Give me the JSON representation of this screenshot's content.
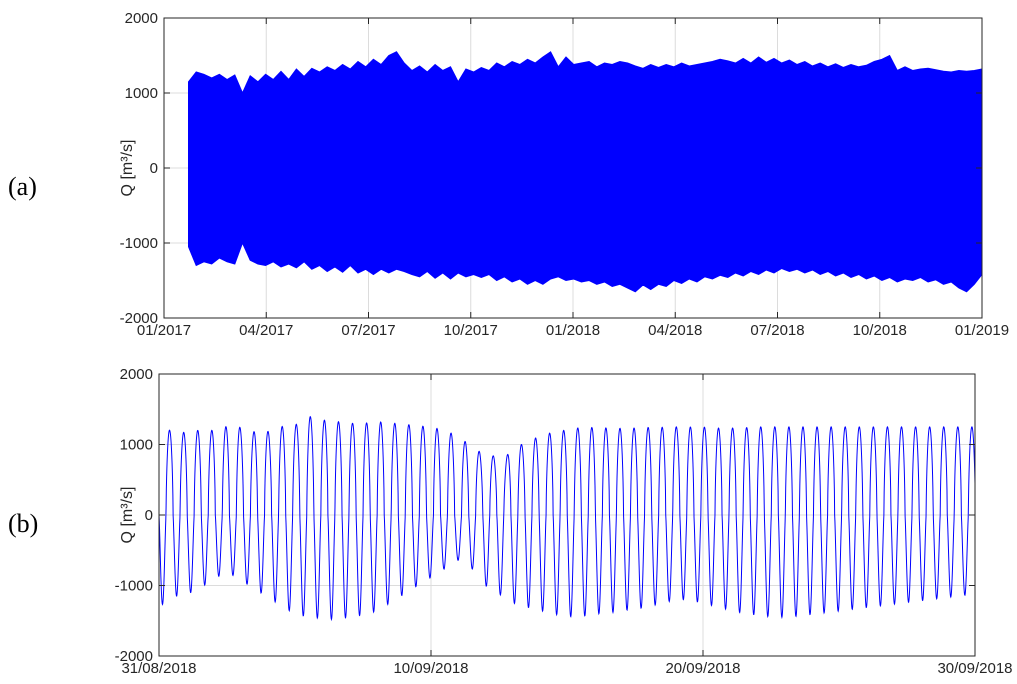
{
  "chart_data": [
    {
      "type": "line",
      "panel_label": "(a)",
      "ylabel": "Q [m³/s]",
      "xlabel": "",
      "ylim": [
        -2000,
        2000
      ],
      "y_ticks": [
        "-2000",
        "-1000",
        "0",
        "1000",
        "2000"
      ],
      "x_ticks": [
        "01/2017",
        "04/2017",
        "07/2017",
        "10/2017",
        "01/2018",
        "04/2018",
        "07/2018",
        "10/2018",
        "01/2019"
      ],
      "xlim": [
        "2017-01-01",
        "2019-01-01"
      ],
      "grid": true,
      "color": "#0000ff",
      "series": [
        {
          "x_date_weekly": "2017-01-15 to 2018-12-31",
          "upper_envelope": [
            1150,
            1280,
            1250,
            1200,
            1250,
            1180,
            1240,
            1000,
            1230,
            1150,
            1250,
            1180,
            1290,
            1180,
            1320,
            1220,
            1330,
            1280,
            1350,
            1300,
            1380,
            1320,
            1420,
            1350,
            1450,
            1380,
            1500,
            1550,
            1400,
            1300,
            1360,
            1280,
            1380,
            1300,
            1350,
            1150,
            1320,
            1280,
            1340,
            1300,
            1400,
            1350,
            1420,
            1380,
            1450,
            1400,
            1480,
            1550,
            1350,
            1480,
            1380,
            1400,
            1420,
            1350,
            1400,
            1380,
            1420,
            1400,
            1360,
            1330,
            1380,
            1340,
            1380,
            1350,
            1400,
            1360,
            1380,
            1400,
            1420,
            1450,
            1430,
            1400,
            1460,
            1400,
            1480,
            1410,
            1460,
            1400,
            1440,
            1380,
            1420,
            1360,
            1400,
            1350,
            1390,
            1340,
            1380,
            1350,
            1370,
            1420,
            1450,
            1500,
            1300,
            1350,
            1300,
            1320,
            1330,
            1310,
            1290,
            1280,
            1300,
            1290,
            1300,
            1320
          ],
          "lower_envelope": [
            -1050,
            -1300,
            -1250,
            -1280,
            -1200,
            -1250,
            -1280,
            -1000,
            -1230,
            -1280,
            -1300,
            -1250,
            -1320,
            -1280,
            -1330,
            -1250,
            -1350,
            -1300,
            -1380,
            -1320,
            -1390,
            -1300,
            -1400,
            -1350,
            -1420,
            -1350,
            -1400,
            -1350,
            -1380,
            -1420,
            -1450,
            -1380,
            -1470,
            -1400,
            -1480,
            -1400,
            -1450,
            -1420,
            -1460,
            -1420,
            -1500,
            -1450,
            -1520,
            -1480,
            -1550,
            -1500,
            -1550,
            -1480,
            -1450,
            -1500,
            -1480,
            -1520,
            -1500,
            -1550,
            -1520,
            -1580,
            -1550,
            -1600,
            -1650,
            -1560,
            -1620,
            -1550,
            -1580,
            -1500,
            -1540,
            -1480,
            -1520,
            -1450,
            -1480,
            -1430,
            -1460,
            -1400,
            -1440,
            -1380,
            -1420,
            -1360,
            -1400,
            -1340,
            -1380,
            -1350,
            -1400,
            -1360,
            -1420,
            -1380,
            -1440,
            -1400,
            -1460,
            -1420,
            -1480,
            -1440,
            -1500,
            -1460,
            -1520,
            -1480,
            -1500,
            -1460,
            -1520,
            -1490,
            -1550,
            -1520,
            -1600,
            -1650,
            -1550,
            -1420
          ]
        }
      ]
    },
    {
      "type": "line",
      "panel_label": "(b)",
      "ylabel": "Q [m³/s]",
      "xlabel": "",
      "ylim": [
        -2000,
        2000
      ],
      "y_ticks": [
        "-2000",
        "-1000",
        "0",
        "1000",
        "2000"
      ],
      "x_ticks": [
        "31/08/2018",
        "10/09/2018",
        "20/09/2018",
        "30/09/2018"
      ],
      "xlim": [
        "2018-08-31",
        "2018-09-30"
      ],
      "grid": true,
      "color": "#0000ff",
      "series": [
        {
          "x_date": "2018-08-31 to 2018-09-30",
          "period_hours": 12.42,
          "cycle_peaks": [
            1240,
            1230,
            1200,
            1230,
            1150,
            1200,
            1180,
            1200,
            1220,
            1180,
            1220,
            1200,
            1250,
            1290,
            1300,
            1200,
            1150,
            1180,
            1200,
            1250,
            1150,
            1220,
            1250,
            1280,
            1250,
            1300,
            1320,
            1400,
            1380,
            1320,
            1350,
            1350,
            1320,
            1330,
            1310,
            1300,
            1290,
            1310,
            1300,
            1300,
            1320,
            1300,
            1300,
            1300,
            1300,
            1280,
            1290,
            1270,
            1250,
            1240,
            1230,
            1200,
            1180,
            1150,
            1100,
            1050,
            1000,
            950,
            880,
            850,
            850,
            800,
            700,
            900,
            950,
            1000,
            1000,
            1050,
            1100,
            1100,
            1150,
            1180,
            1200,
            1200,
            1220,
            1230,
            1240,
            1250,
            1240,
            1250,
            1240,
            1230,
            1240,
            1230,
            1220,
            1240,
            1230,
            1250,
            1240,
            1250,
            1250,
            1240,
            1250,
            1250,
            1250,
            1240,
            1250,
            1240,
            1250,
            1230,
            1240,
            1230,
            1240,
            1230,
            1240,
            1240,
            1240,
            1230,
            1250,
            1250,
            1250,
            1250,
            1250,
            1250,
            1250,
            1250,
            1250,
            1250,
            1250,
            1250,
            1250,
            1250,
            1250,
            1250,
            1250,
            1250,
            1250,
            1250,
            1250,
            1250,
            1250,
            1250,
            1250,
            1250,
            1250,
            1250,
            1250,
            1250,
            1250,
            1250,
            1250,
            1250,
            1250,
            1250,
            1250,
            1250,
            1250,
            1250
          ],
          "cycle_troughs": [
            -1300,
            -1250,
            -1200,
            -1150,
            -1150,
            -1100,
            -1100,
            -1050,
            -1000,
            -950,
            -900,
            -850,
            -800,
            -850,
            -900,
            -950,
            -1000,
            -1050,
            -1100,
            -1150,
            -1200,
            -1250,
            -1300,
            -1350,
            -1400,
            -1420,
            -1440,
            -1450,
            -1460,
            -1470,
            -1480,
            -1480,
            -1470,
            -1460,
            -1450,
            -1440,
            -1420,
            -1400,
            -1380,
            -1350,
            -1300,
            -1250,
            -1200,
            -1150,
            -1100,
            -1050,
            -1000,
            -950,
            -900,
            -850,
            -800,
            -750,
            -700,
            -650,
            -600,
            -700,
            -800,
            -900,
            -1000,
            -1050,
            -1100,
            -1150,
            -1200,
            -1250,
            -1280,
            -1300,
            -1320,
            -1340,
            -1360,
            -1380,
            -1400,
            -1420,
            -1430,
            -1440,
            -1450,
            -1440,
            -1430,
            -1420,
            -1400,
            -1400,
            -1380,
            -1380,
            -1360,
            -1350,
            -1340,
            -1330,
            -1320,
            -1300,
            -1280,
            -1260,
            -1240,
            -1220,
            -1200,
            -1200,
            -1200,
            -1220,
            -1240,
            -1260,
            -1280,
            -1300,
            -1320,
            -1340,
            -1360,
            -1380,
            -1400,
            -1400,
            -1420,
            -1420,
            -1440,
            -1440,
            -1450,
            -1450,
            -1440,
            -1440,
            -1430,
            -1420,
            -1410,
            -1400,
            -1390,
            -1380,
            -1370,
            -1360,
            -1350,
            -1340,
            -1330,
            -1320,
            -1310,
            -1300,
            -1290,
            -1280,
            -1270,
            -1260,
            -1250,
            -1240,
            -1230,
            -1220,
            -1210,
            -1200,
            -1190,
            -1180,
            -1170,
            -1160,
            -1150,
            -1140,
            -1130,
            -1120
          ]
        }
      ]
    }
  ]
}
